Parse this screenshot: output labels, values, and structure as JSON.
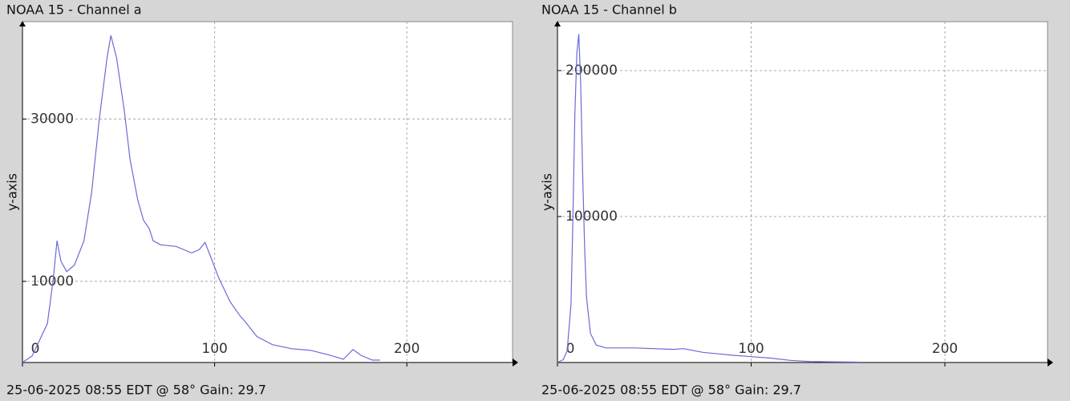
{
  "chart_data": [
    {
      "type": "line",
      "title": "NOAA 15 - Channel a",
      "y_label": "y-axis",
      "footer": "25-06-2025 08:55 EDT @ 58° Gain: 29.7",
      "color": "#6a6ad8",
      "grid": true,
      "xlim": [
        0,
        255
      ],
      "ylim": [
        0,
        42000
      ],
      "xticks": [
        0,
        100,
        200
      ],
      "yticks": [
        10000,
        30000
      ],
      "x": [
        0,
        5,
        8,
        13,
        16,
        18,
        20,
        23,
        27,
        32,
        36,
        40,
        44,
        46,
        49,
        53,
        56,
        60,
        63,
        66,
        68,
        72,
        80,
        88,
        92,
        95,
        98,
        102,
        108,
        113,
        116,
        122,
        130,
        140,
        150,
        160,
        167,
        172,
        176,
        182,
        186
      ],
      "values": [
        0,
        800,
        2300,
        4800,
        10200,
        15000,
        12500,
        11200,
        12000,
        15000,
        21000,
        30000,
        37500,
        40300,
        37500,
        31000,
        25000,
        20000,
        17500,
        16500,
        15000,
        14500,
        14300,
        13500,
        13900,
        14800,
        13000,
        10500,
        7500,
        5800,
        5000,
        3200,
        2200,
        1700,
        1500,
        900,
        400,
        1600,
        900,
        300,
        300
      ]
    },
    {
      "type": "line",
      "title": "NOAA 15 - Channel b",
      "y_label": "y-axis",
      "footer": "25-06-2025 08:55 EDT @ 58° Gain: 29.7",
      "color": "#6a6ad8",
      "grid": true,
      "xlim": [
        0,
        253
      ],
      "ylim": [
        0,
        233500
      ],
      "xticks": [
        0,
        100,
        200
      ],
      "yticks": [
        100000,
        200000
      ],
      "x": [
        0,
        3,
        5,
        7,
        8,
        9,
        10,
        11,
        12,
        13,
        14,
        15,
        17,
        20,
        25,
        40,
        60,
        65,
        75,
        90,
        100,
        110,
        120,
        130,
        140,
        155
      ],
      "values": [
        0,
        2000,
        8000,
        40000,
        100000,
        170000,
        212000,
        225000,
        190000,
        130000,
        80000,
        45000,
        20000,
        12000,
        10000,
        10000,
        9000,
        9500,
        7000,
        5000,
        4000,
        3000,
        1500,
        700,
        500,
        300
      ]
    }
  ]
}
